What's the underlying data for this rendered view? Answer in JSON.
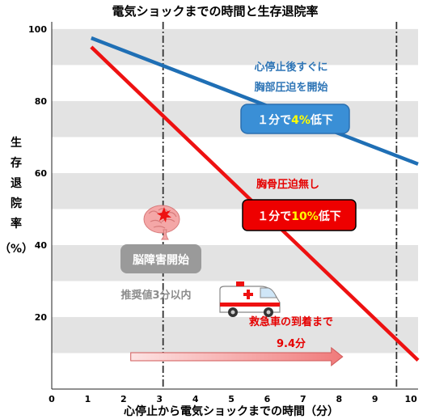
{
  "chart_data": {
    "type": "line",
    "title": "電気ショックまでの時間と生存退院率",
    "xlabel": "心停止から電気ショックまでの時間（分）",
    "ylabel_chars": [
      "生",
      "存",
      "退",
      "院",
      "率",
      "（%）"
    ],
    "xlim": [
      0,
      10.2
    ],
    "ylim": [
      0,
      102
    ],
    "x_ticks": [
      0,
      1,
      2,
      3,
      4,
      5,
      6,
      7,
      8,
      9,
      10
    ],
    "y_ticks": [
      20,
      40,
      60,
      80,
      100
    ],
    "grid": "alternating horizontal bands",
    "series": [
      {
        "color": "#1f6fb5",
        "x": [
          1.1,
          10.2
        ],
        "y": [
          97.5,
          62.5
        ]
      },
      {
        "color": "#ee1111",
        "x": [
          1.1,
          10.2
        ],
        "y": [
          95,
          8
        ]
      }
    ],
    "vlines": [
      3.1,
      9.6
    ],
    "annotations": {
      "cpr_note_line1": "心停止後すぐに",
      "cpr_note_line2": "胸部圧迫を開始",
      "cpr_badge_pre": "１分で",
      "cpr_badge_value": "4%",
      "cpr_badge_post": "低下",
      "no_cpr_note": "胸骨圧迫無し",
      "no_cpr_badge_pre": "１分で",
      "no_cpr_badge_value": "10%",
      "no_cpr_badge_post": "低下",
      "brain_badge": "脳障害開始",
      "recommend_note": "推奨値3分以内",
      "ambulance_note_line1": "救急車の到着まで",
      "ambulance_note_line2": "9.4分"
    },
    "arrow": {
      "x_start": 2.2,
      "x_end": 8.1,
      "y": 9
    },
    "colors": {
      "blue": "#1f6fb5",
      "red": "#ee1111",
      "band": "#e3e3e3",
      "badge_blue": "#3a8fd6",
      "badge_gray": "#9a9a9a",
      "highlight": "#ffff00"
    }
  }
}
